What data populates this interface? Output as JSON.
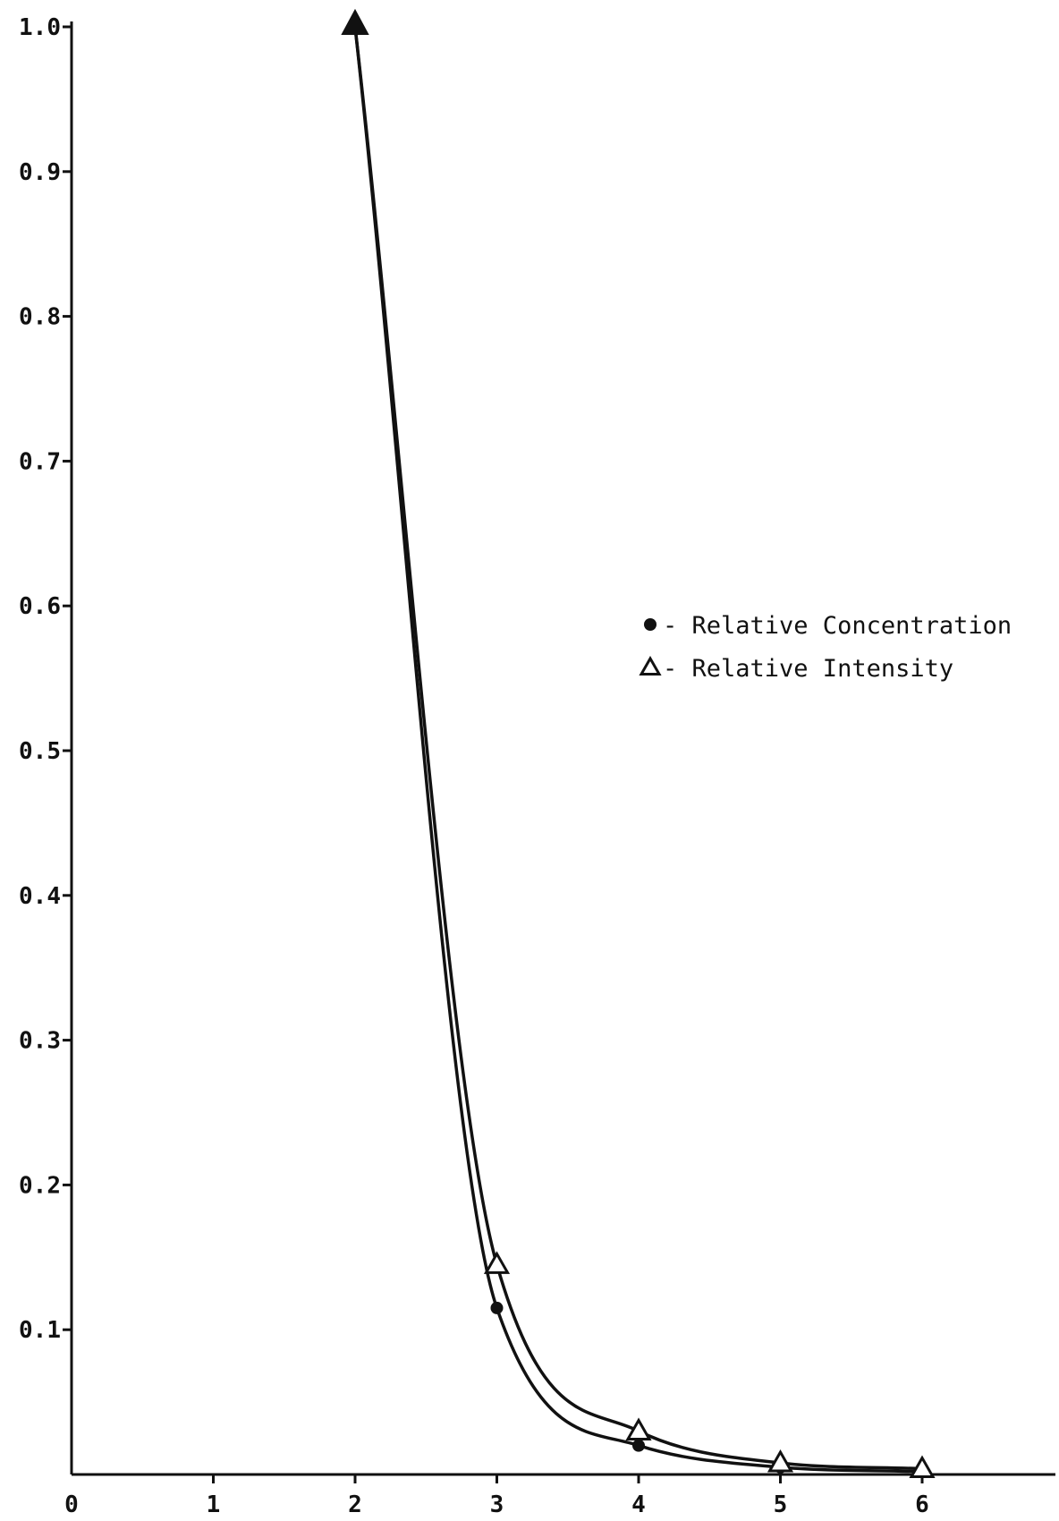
{
  "chart_data": {
    "type": "line",
    "title": "",
    "xlabel": "",
    "ylabel": "",
    "xlim": [
      0,
      7
    ],
    "ylim": [
      0,
      1.0
    ],
    "grid": false,
    "legend_position": "right",
    "x_ticks": [
      0,
      1,
      2,
      3,
      4,
      5,
      6
    ],
    "x_tick_labels": [
      "0",
      "1",
      "2",
      "3",
      "4",
      "5",
      "6"
    ],
    "y_ticks": [
      0.1,
      0.2,
      0.3,
      0.4,
      0.5,
      0.6,
      0.7,
      0.8,
      0.9,
      1.0
    ],
    "y_tick_labels": [
      "0.1",
      "0.2",
      "0.3",
      "0.4",
      "0.5",
      "0.6",
      "0.7",
      "0.8",
      "0.9",
      "1.0"
    ],
    "series": [
      {
        "name": "Relative Concentration",
        "marker": "filled-circle",
        "color": "#111111",
        "x": [
          2,
          3,
          4,
          5,
          6
        ],
        "y": [
          1.0,
          0.115,
          0.02,
          0.005,
          0.002
        ]
      },
      {
        "name": "Relative Intensity",
        "marker": "open-triangle",
        "color": "#111111",
        "x": [
          2,
          3,
          4,
          5,
          6
        ],
        "y": [
          1.0,
          0.145,
          0.03,
          0.008,
          0.004
        ]
      }
    ],
    "legend": {
      "entries": [
        {
          "marker": "filled-circle",
          "label": "- Relative Concentration"
        },
        {
          "marker": "open-triangle",
          "label": "- Relative Intensity"
        }
      ]
    }
  }
}
